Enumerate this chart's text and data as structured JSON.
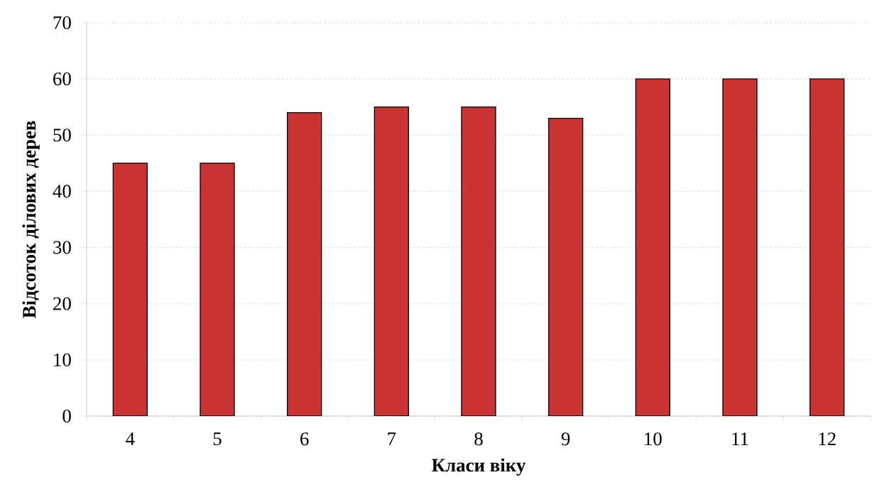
{
  "chart_data": {
    "type": "bar",
    "xlabel": "Класи віку",
    "ylabel": "Відсоток ділових дерев",
    "categories": [
      "4",
      "5",
      "6",
      "7",
      "8",
      "9",
      "10",
      "11",
      "12"
    ],
    "values": [
      45,
      45,
      54,
      55,
      55,
      53,
      60,
      60,
      60
    ],
    "color": "#cc3333",
    "ylim": [
      0,
      70
    ],
    "yticks": [
      0,
      10,
      20,
      30,
      40,
      50,
      60,
      70
    ],
    "grid": "y"
  }
}
